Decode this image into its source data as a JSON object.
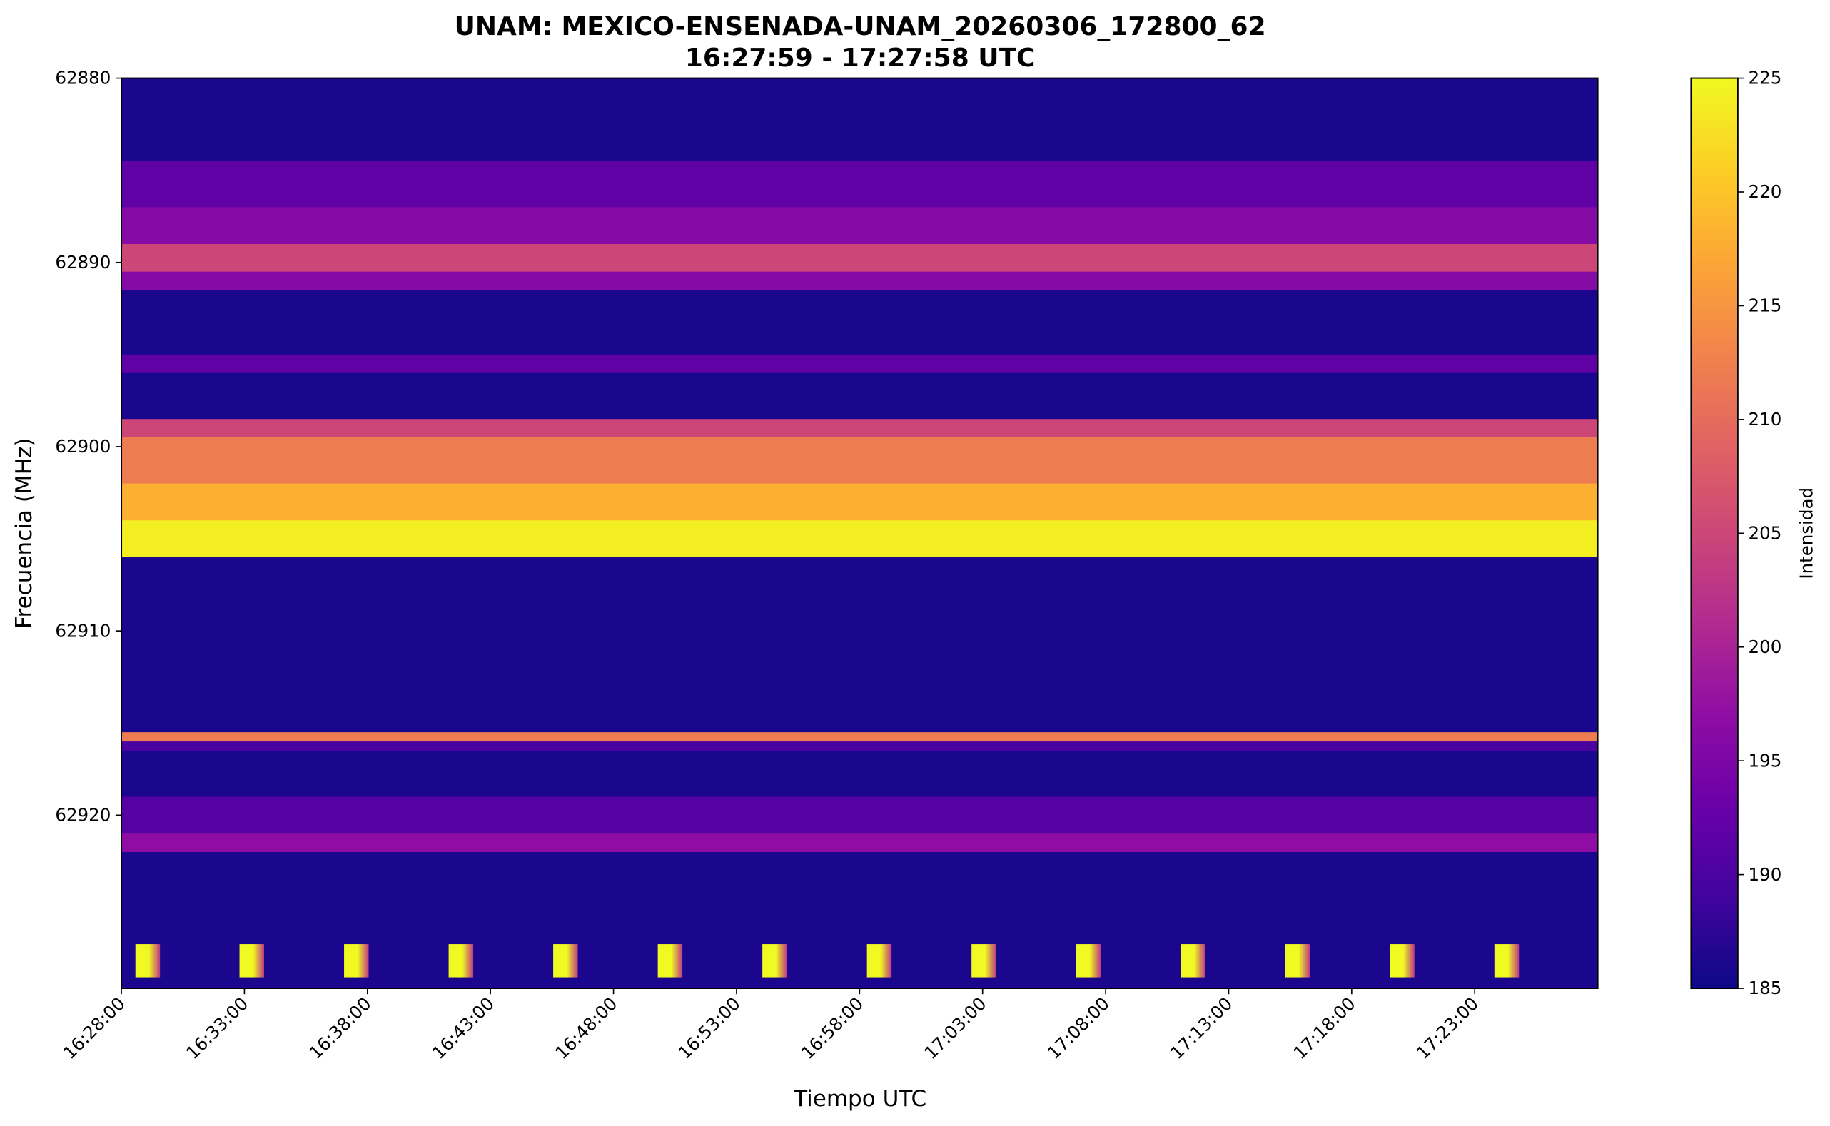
{
  "chart_data": {
    "type": "heatmap",
    "title": "UNAM: MEXICO-ENSENADA-UNAM_20260306_172800_62",
    "subtitle": "16:27:59 - 17:27:58 UTC",
    "x_label": "Tiempo UTC",
    "y_label": "Frecuencia (MHz)",
    "colorbar_label": "Intensidad",
    "colormap": "plasma",
    "y_inverted": true,
    "xlim": [
      0,
      60
    ],
    "xticks": [
      {
        "value": 0,
        "label": "16:28:00"
      },
      {
        "value": 5,
        "label": "16:33:00"
      },
      {
        "value": 10,
        "label": "16:38:00"
      },
      {
        "value": 15,
        "label": "16:43:00"
      },
      {
        "value": 20,
        "label": "16:48:00"
      },
      {
        "value": 25,
        "label": "16:53:00"
      },
      {
        "value": 30,
        "label": "16:58:00"
      },
      {
        "value": 35,
        "label": "17:03:00"
      },
      {
        "value": 40,
        "label": "17:08:00"
      },
      {
        "value": 45,
        "label": "17:13:00"
      },
      {
        "value": 50,
        "label": "17:18:00"
      },
      {
        "value": 55,
        "label": "17:23:00"
      }
    ],
    "ylim": [
      62880,
      62929.4
    ],
    "yticks": [
      62880,
      62890,
      62900,
      62910,
      62920
    ],
    "clim": [
      185,
      225
    ],
    "cticks": [
      185,
      190,
      195,
      200,
      205,
      210,
      215,
      220,
      225
    ],
    "y_edges": [
      62880,
      62884.5,
      62887,
      62889,
      62890.5,
      62891.5,
      62895,
      62896,
      62898.5,
      62899.5,
      62902,
      62904,
      62906,
      62915.5,
      62916,
      62916.5,
      62919,
      62921,
      62922,
      62929.4
    ],
    "values": [
      186,
      192,
      196,
      205,
      196,
      186,
      192,
      186,
      205,
      212,
      218,
      224,
      186,
      212,
      190,
      186,
      191,
      197,
      186
    ],
    "pulses": {
      "x": [
        0.57,
        4.8,
        9.05,
        13.3,
        17.55,
        21.8,
        26.05,
        30.3,
        34.55,
        38.8,
        43.05,
        47.3,
        51.55,
        55.8
      ],
      "duration": 1,
      "ylim": [
        62927,
        62928.8
      ],
      "intensity": 225
    }
  }
}
